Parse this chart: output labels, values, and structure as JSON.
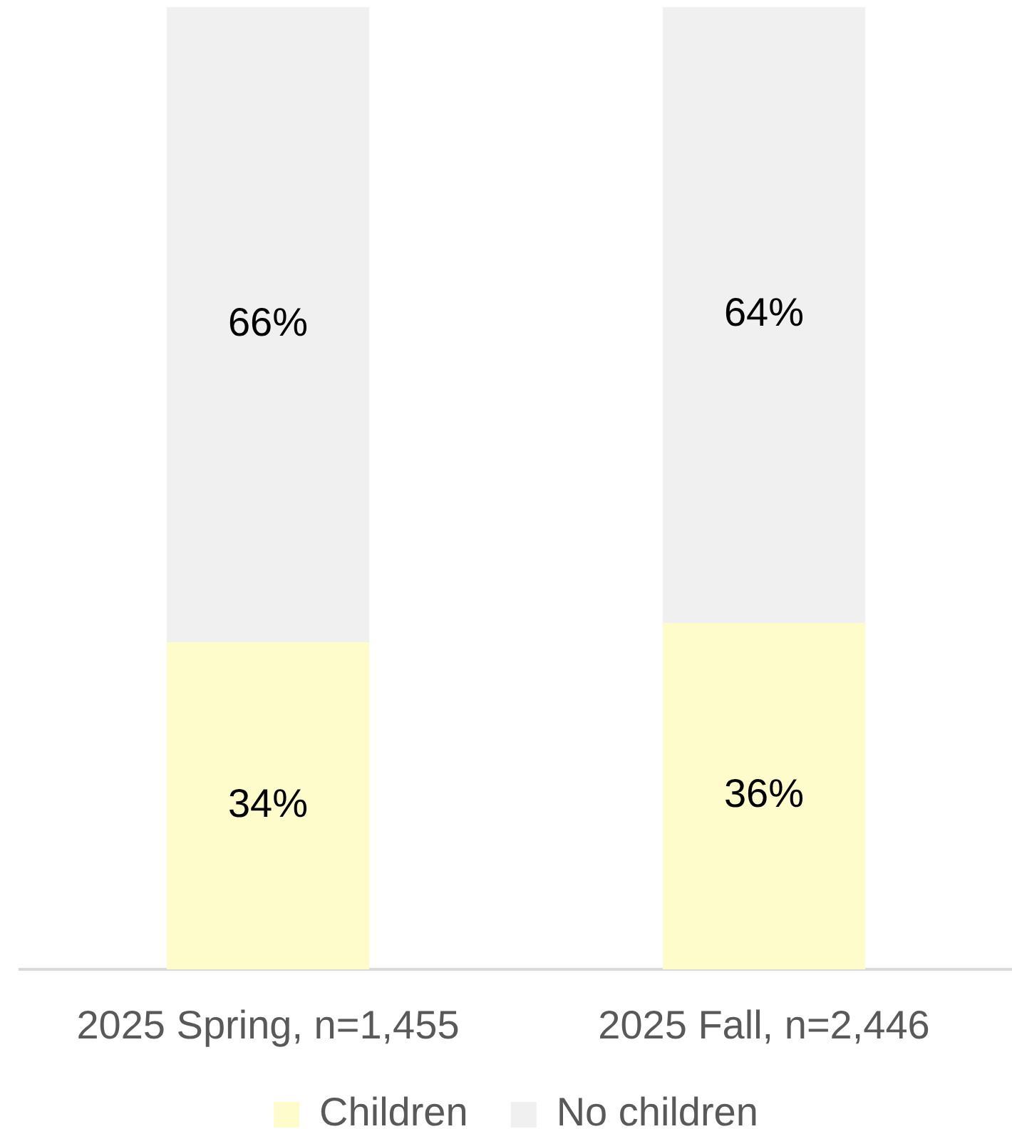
{
  "chart_data": {
    "type": "bar",
    "stacked": true,
    "categories": [
      "2025 Spring, n=1,455",
      "2025 Fall, n=2,446"
    ],
    "series": [
      {
        "name": "Children",
        "color": "#fffccc",
        "values": [
          34,
          36
        ],
        "value_labels": [
          "34%",
          "36%"
        ]
      },
      {
        "name": "No children",
        "color": "#f0f0f0",
        "values": [
          66,
          64
        ],
        "value_labels": [
          "66%",
          "64%"
        ]
      }
    ],
    "legend": "bottom",
    "tick_labels": "x"
  }
}
